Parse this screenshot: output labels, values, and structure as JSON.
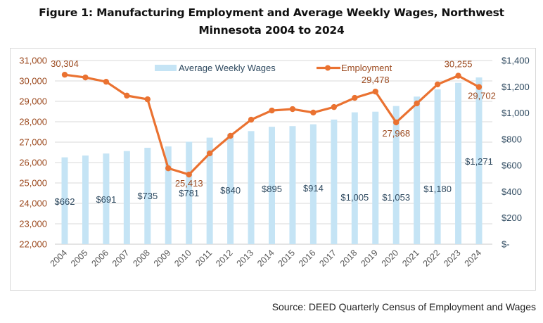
{
  "figure": {
    "title_line1": "Figure 1: Manufacturing Employment and Average Weekly Wages, Northwest",
    "title_line2": "Minnesota 2004 to 2024",
    "source": "Source: DEED Quarterly Census of Employment and Wages"
  },
  "chart_data": {
    "type": "bar+line",
    "title": "Figure 1: Manufacturing Employment and Average Weekly Wages, Northwest Minnesota 2004 to 2024",
    "categories": [
      "2004",
      "2005",
      "2006",
      "2007",
      "2008",
      "2009",
      "2010",
      "2011",
      "2012",
      "2013",
      "2014",
      "2015",
      "2016",
      "2017",
      "2018",
      "2019",
      "2020",
      "2021",
      "2022",
      "2023",
      "2024"
    ],
    "series": [
      {
        "name": "Average Weekly Wages",
        "type": "bar",
        "axis": "right",
        "color": "#c5e4f5",
        "values": [
          662,
          676,
          691,
          710,
          735,
          745,
          781,
          812,
          840,
          862,
          895,
          900,
          914,
          950,
          1005,
          1010,
          1053,
          1125,
          1180,
          1230,
          1271
        ],
        "labels": [
          "$662",
          "",
          "$691",
          "",
          "$735",
          "",
          "$781",
          "",
          "$840",
          "",
          "$895",
          "",
          "$914",
          "",
          "$1,005",
          "",
          "$1,053",
          "",
          "$1,180",
          "",
          "$1,271"
        ]
      },
      {
        "name": "Employment",
        "type": "line",
        "axis": "left",
        "color": "#ea7231",
        "values": [
          30304,
          30170,
          29960,
          29280,
          29100,
          25720,
          25413,
          26450,
          27310,
          28100,
          28550,
          28620,
          28450,
          28720,
          29170,
          29478,
          27968,
          28900,
          29830,
          30255,
          29702
        ],
        "labels": [
          "30,304",
          "",
          "",
          "",
          "",
          "",
          "25,413",
          "",
          "",
          "",
          "",
          "",
          "",
          "",
          "",
          "29,478",
          "27,968",
          "",
          "",
          "30,255",
          "29,702"
        ]
      }
    ],
    "left_axis": {
      "ylim": [
        22000,
        31000
      ],
      "ticks": [
        "31,000",
        "30,000",
        "29,000",
        "28,000",
        "27,000",
        "26,000",
        "25,000",
        "24,000",
        "23,000",
        "22,000"
      ],
      "tick_values": [
        31000,
        30000,
        29000,
        28000,
        27000,
        26000,
        25000,
        24000,
        23000,
        22000
      ],
      "color": "#9c4a1f"
    },
    "right_axis": {
      "ylim": [
        0,
        1400
      ],
      "ticks": [
        "$1,400",
        "$1,200",
        "$1,000",
        "$800",
        "$600",
        "$400",
        "$200",
        "$-"
      ],
      "tick_values": [
        1400,
        1200,
        1000,
        800,
        600,
        400,
        200,
        0
      ],
      "color": "#2f4a60"
    },
    "legend": {
      "position": "top",
      "items": [
        "Average Weekly Wages",
        "Employment"
      ]
    },
    "grid": true,
    "xlabel": "",
    "ylabel": ""
  }
}
